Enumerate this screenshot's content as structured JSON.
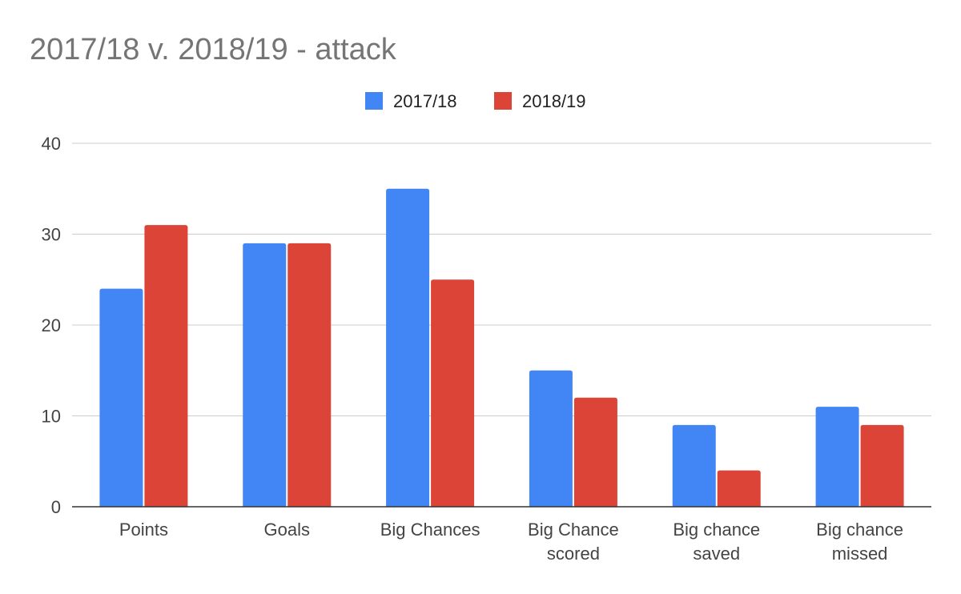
{
  "chart_data": {
    "type": "bar",
    "title": "2017/18 v. 2018/19 - attack",
    "xlabel": "",
    "ylabel": "",
    "ylim": [
      0,
      40
    ],
    "yticks": [
      0,
      10,
      20,
      30,
      40
    ],
    "grid": true,
    "legend_position": "top-center",
    "categories": [
      [
        "Points"
      ],
      [
        "Goals"
      ],
      [
        "Big Chances"
      ],
      [
        "Big Chance",
        "scored"
      ],
      [
        "Big chance",
        "saved"
      ],
      [
        "Big chance",
        "missed"
      ]
    ],
    "series": [
      {
        "name": "2017/18",
        "color": "#4285f4",
        "values": [
          24,
          29,
          35,
          15,
          9,
          11
        ]
      },
      {
        "name": "2018/19",
        "color": "#db4437",
        "values": [
          31,
          29,
          25,
          12,
          4,
          9
        ]
      }
    ]
  }
}
